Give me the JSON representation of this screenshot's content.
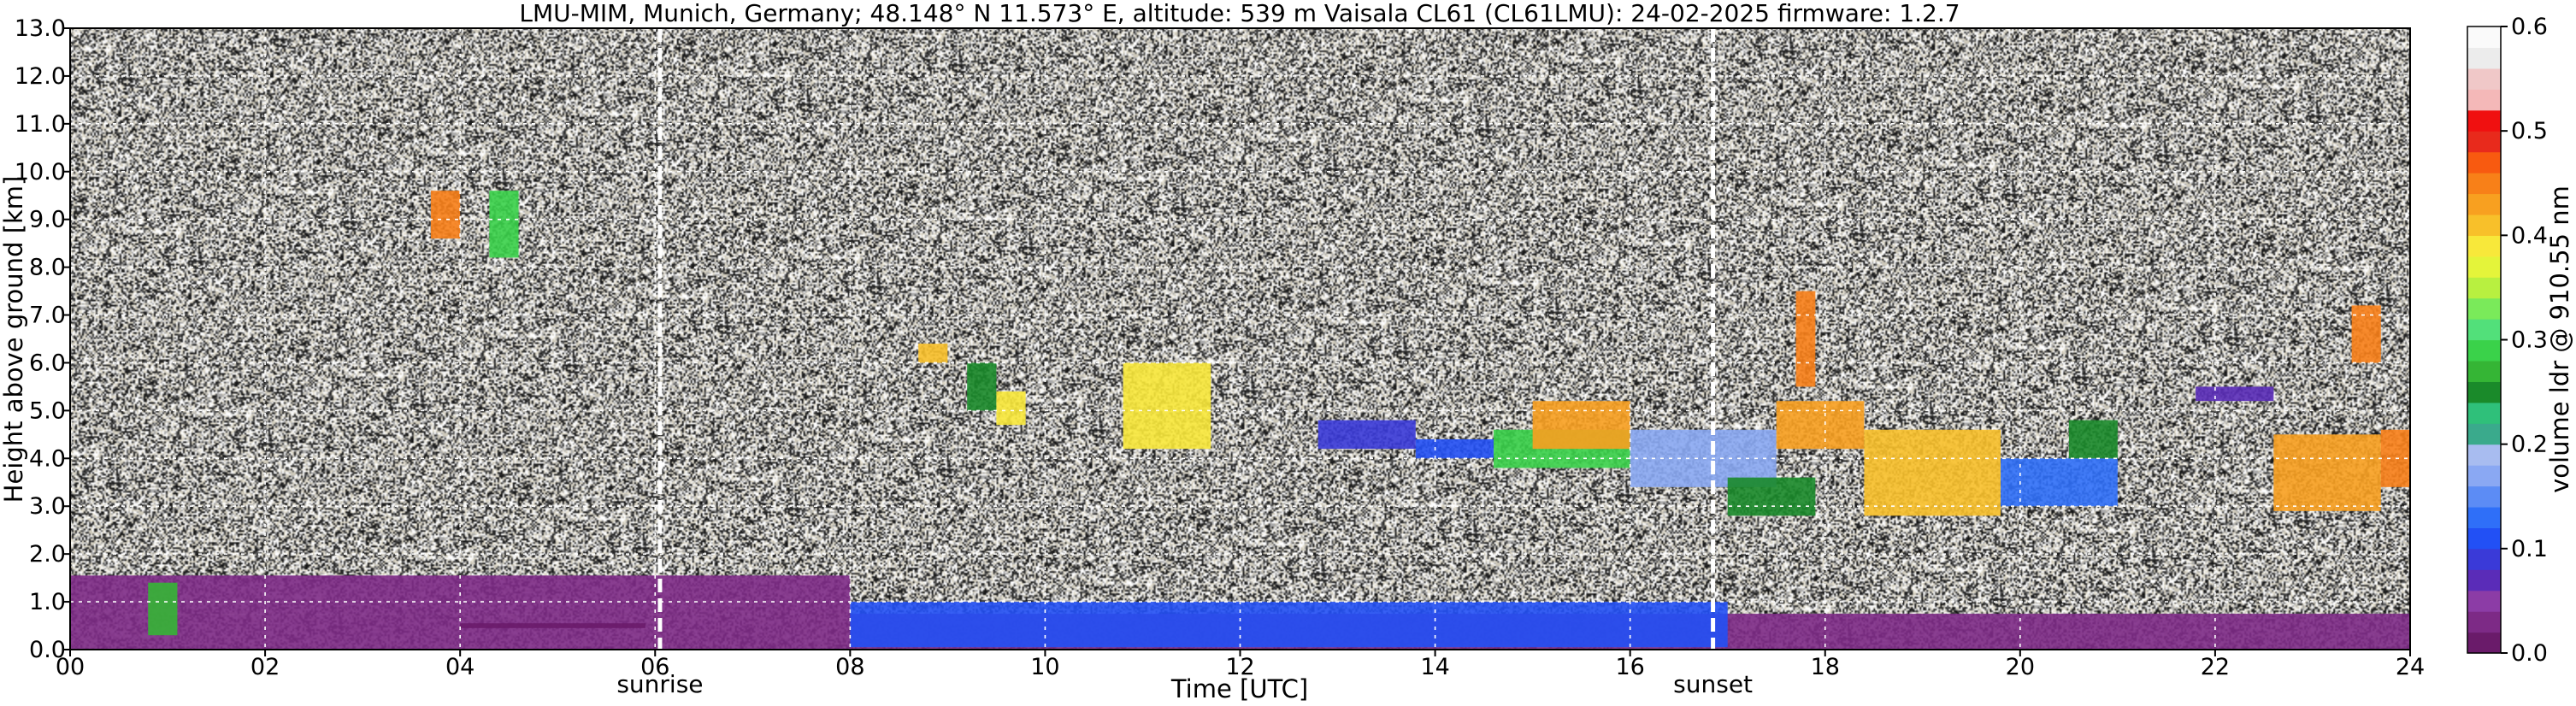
{
  "chart_data": {
    "type": "heatmap",
    "title": "LMU-MIM, Munich, Germany; 48.148° N 11.573° E, altitude: 539 m    Vaisala CL61 (CL61LMU): 24-02-2025    firmware: 1.2.7",
    "xlabel": "Time [UTC]",
    "ylabel": "Height above ground [km]",
    "xlim": [
      0,
      24
    ],
    "ylim": [
      0,
      13
    ],
    "x_ticks": [
      "00",
      "02",
      "04",
      "06",
      "08",
      "10",
      "12",
      "14",
      "16",
      "18",
      "20",
      "22",
      "24"
    ],
    "y_ticks": [
      "0.0",
      "1.0",
      "2.0",
      "3.0",
      "4.0",
      "5.0",
      "6.0",
      "7.0",
      "8.0",
      "9.0",
      "10.0",
      "11.0",
      "12.0",
      "13.0"
    ],
    "grid": true,
    "colorbar": {
      "label": "volume ldr @ 910.55 nm",
      "range": [
        0,
        0.6
      ],
      "ticks": [
        "0.0",
        "0.1",
        "0.2",
        "0.3",
        "0.4",
        "0.5",
        "0.6"
      ],
      "colors": [
        "#6a1b6a",
        "#7d2a86",
        "#8c3ca6",
        "#5a2cb8",
        "#3a3ad8",
        "#2250f5",
        "#2f6ff8",
        "#5c8cf5",
        "#8aa8f3",
        "#a8bcf0",
        "#3aaa8c",
        "#2fc07a",
        "#1a8a2a",
        "#35b535",
        "#3ad24a",
        "#52e07a",
        "#7aea5a",
        "#b8f040",
        "#e4f43a",
        "#f8e83a",
        "#f8c02a",
        "#f8a020",
        "#f88018",
        "#f85a10",
        "#e82a1c",
        "#f01010",
        "#f4b8b8",
        "#f0c8c8",
        "#ececec",
        "#fafafa"
      ]
    },
    "events": [
      {
        "label": "sunrise",
        "time": 6.05
      },
      {
        "label": "sunset",
        "time": 16.85
      }
    ],
    "regions": [
      {
        "t0": 0.0,
        "t1": 24.0,
        "h0": 0.0,
        "h1": 0.75,
        "ldr": 0.03
      },
      {
        "t0": 0.0,
        "t1": 8.0,
        "h0": 0.75,
        "h1": 1.55,
        "ldr": 0.02
      },
      {
        "t0": 0.8,
        "t1": 1.1,
        "h0": 0.3,
        "h1": 1.4,
        "ldr": 0.27
      },
      {
        "t0": 4.0,
        "t1": 5.9,
        "h0": 0.45,
        "h1": 0.55,
        "ldr": 0.0
      },
      {
        "t0": 8.0,
        "t1": 17.0,
        "h0": 0.05,
        "h1": 1.0,
        "ldr": 0.1
      },
      {
        "t0": 3.7,
        "t1": 4.0,
        "h0": 8.6,
        "h1": 9.6,
        "ldr": 0.45
      },
      {
        "t0": 4.3,
        "t1": 4.6,
        "h0": 8.2,
        "h1": 9.6,
        "ldr": 0.28
      },
      {
        "t0": 8.7,
        "t1": 9.0,
        "h0": 6.0,
        "h1": 6.4,
        "ldr": 0.4
      },
      {
        "t0": 9.2,
        "t1": 9.5,
        "h0": 5.0,
        "h1": 6.0,
        "ldr": 0.25
      },
      {
        "t0": 9.5,
        "t1": 9.8,
        "h0": 4.7,
        "h1": 5.4,
        "ldr": 0.38
      },
      {
        "t0": 10.8,
        "t1": 11.7,
        "h0": 4.2,
        "h1": 6.0,
        "ldr": 0.38
      },
      {
        "t0": 12.8,
        "t1": 13.8,
        "h0": 4.2,
        "h1": 4.8,
        "ldr": 0.08
      },
      {
        "t0": 13.8,
        "t1": 14.6,
        "h0": 4.0,
        "h1": 4.4,
        "ldr": 0.1
      },
      {
        "t0": 14.6,
        "t1": 16.0,
        "h0": 3.8,
        "h1": 4.6,
        "ldr": 0.28
      },
      {
        "t0": 15.0,
        "t1": 16.0,
        "h0": 4.2,
        "h1": 5.2,
        "ldr": 0.42
      },
      {
        "t0": 16.0,
        "t1": 17.5,
        "h0": 3.4,
        "h1": 4.6,
        "ldr": 0.16
      },
      {
        "t0": 17.0,
        "t1": 17.9,
        "h0": 2.8,
        "h1": 3.6,
        "ldr": 0.25
      },
      {
        "t0": 17.5,
        "t1": 18.4,
        "h0": 4.2,
        "h1": 5.2,
        "ldr": 0.42
      },
      {
        "t0": 18.4,
        "t1": 19.8,
        "h0": 2.8,
        "h1": 4.6,
        "ldr": 0.4
      },
      {
        "t0": 19.8,
        "t1": 21.0,
        "h0": 3.0,
        "h1": 4.0,
        "ldr": 0.13
      },
      {
        "t0": 20.5,
        "t1": 21.0,
        "h0": 4.0,
        "h1": 4.8,
        "ldr": 0.25
      },
      {
        "t0": 21.8,
        "t1": 22.6,
        "h0": 5.2,
        "h1": 5.5,
        "ldr": 0.07
      },
      {
        "t0": 22.6,
        "t1": 23.7,
        "h0": 2.9,
        "h1": 4.5,
        "ldr": 0.42
      },
      {
        "t0": 23.7,
        "t1": 24.0,
        "h0": 3.4,
        "h1": 4.6,
        "ldr": 0.45
      },
      {
        "t0": 17.7,
        "t1": 17.9,
        "h0": 5.5,
        "h1": 7.5,
        "ldr": 0.45
      },
      {
        "t0": 23.4,
        "t1": 23.7,
        "h0": 6.0,
        "h1": 7.2,
        "ldr": 0.45
      }
    ]
  }
}
